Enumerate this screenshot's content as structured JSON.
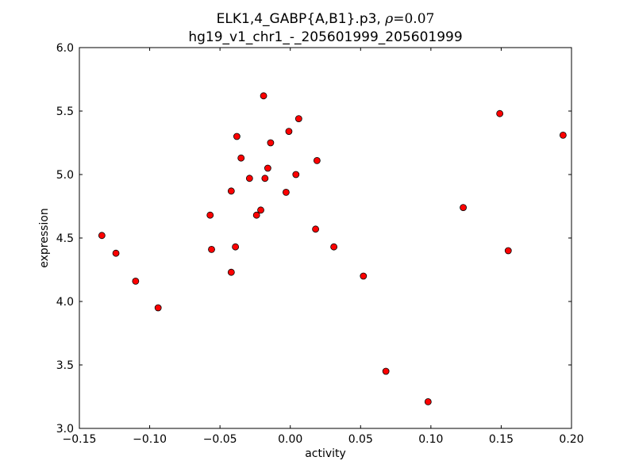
{
  "chart_data": {
    "type": "scatter",
    "title_prefix": "ELK1,4_GABP{A,B1}.p3, ",
    "title_rho_symbol": "ρ",
    "title_rho_value": "=0.07",
    "subtitle": "hg19_v1_chr1_-_205601999_205601999",
    "xlabel": "activity",
    "ylabel": "expression",
    "xlim": [
      -0.15,
      0.2
    ],
    "ylim": [
      3.0,
      6.0
    ],
    "xticks": [
      -0.15,
      -0.1,
      -0.05,
      0.0,
      0.05,
      0.1,
      0.15,
      0.2
    ],
    "xtick_labels": [
      "−0.15",
      "−0.10",
      "−0.05",
      "0.00",
      "0.05",
      "0.10",
      "0.15",
      "0.20"
    ],
    "yticks": [
      3.0,
      3.5,
      4.0,
      4.5,
      5.0,
      5.5,
      6.0
    ],
    "ytick_labels": [
      "3.0",
      "3.5",
      "4.0",
      "4.5",
      "5.0",
      "5.5",
      "6.0"
    ],
    "grid": false,
    "marker_color": "#ff0000",
    "marker_edge": "#000000",
    "points": [
      {
        "x": -0.134,
        "y": 4.52
      },
      {
        "x": -0.124,
        "y": 4.38
      },
      {
        "x": -0.11,
        "y": 4.16
      },
      {
        "x": -0.094,
        "y": 3.95
      },
      {
        "x": -0.057,
        "y": 4.68
      },
      {
        "x": -0.056,
        "y": 4.41
      },
      {
        "x": -0.042,
        "y": 4.87
      },
      {
        "x": -0.042,
        "y": 4.23
      },
      {
        "x": -0.039,
        "y": 4.43
      },
      {
        "x": -0.038,
        "y": 5.3
      },
      {
        "x": -0.035,
        "y": 5.13
      },
      {
        "x": -0.029,
        "y": 4.97
      },
      {
        "x": -0.024,
        "y": 4.68
      },
      {
        "x": -0.021,
        "y": 4.72
      },
      {
        "x": -0.019,
        "y": 5.62
      },
      {
        "x": -0.018,
        "y": 4.97
      },
      {
        "x": -0.016,
        "y": 5.05
      },
      {
        "x": -0.014,
        "y": 5.25
      },
      {
        "x": -0.003,
        "y": 4.86
      },
      {
        "x": -0.001,
        "y": 5.34
      },
      {
        "x": 0.004,
        "y": 5.0
      },
      {
        "x": 0.006,
        "y": 5.44
      },
      {
        "x": 0.018,
        "y": 4.57
      },
      {
        "x": 0.019,
        "y": 5.11
      },
      {
        "x": 0.031,
        "y": 4.43
      },
      {
        "x": 0.052,
        "y": 4.2
      },
      {
        "x": 0.068,
        "y": 3.45
      },
      {
        "x": 0.098,
        "y": 3.21
      },
      {
        "x": 0.123,
        "y": 4.74
      },
      {
        "x": 0.149,
        "y": 5.48
      },
      {
        "x": 0.155,
        "y": 4.4
      },
      {
        "x": 0.194,
        "y": 5.31
      }
    ]
  }
}
